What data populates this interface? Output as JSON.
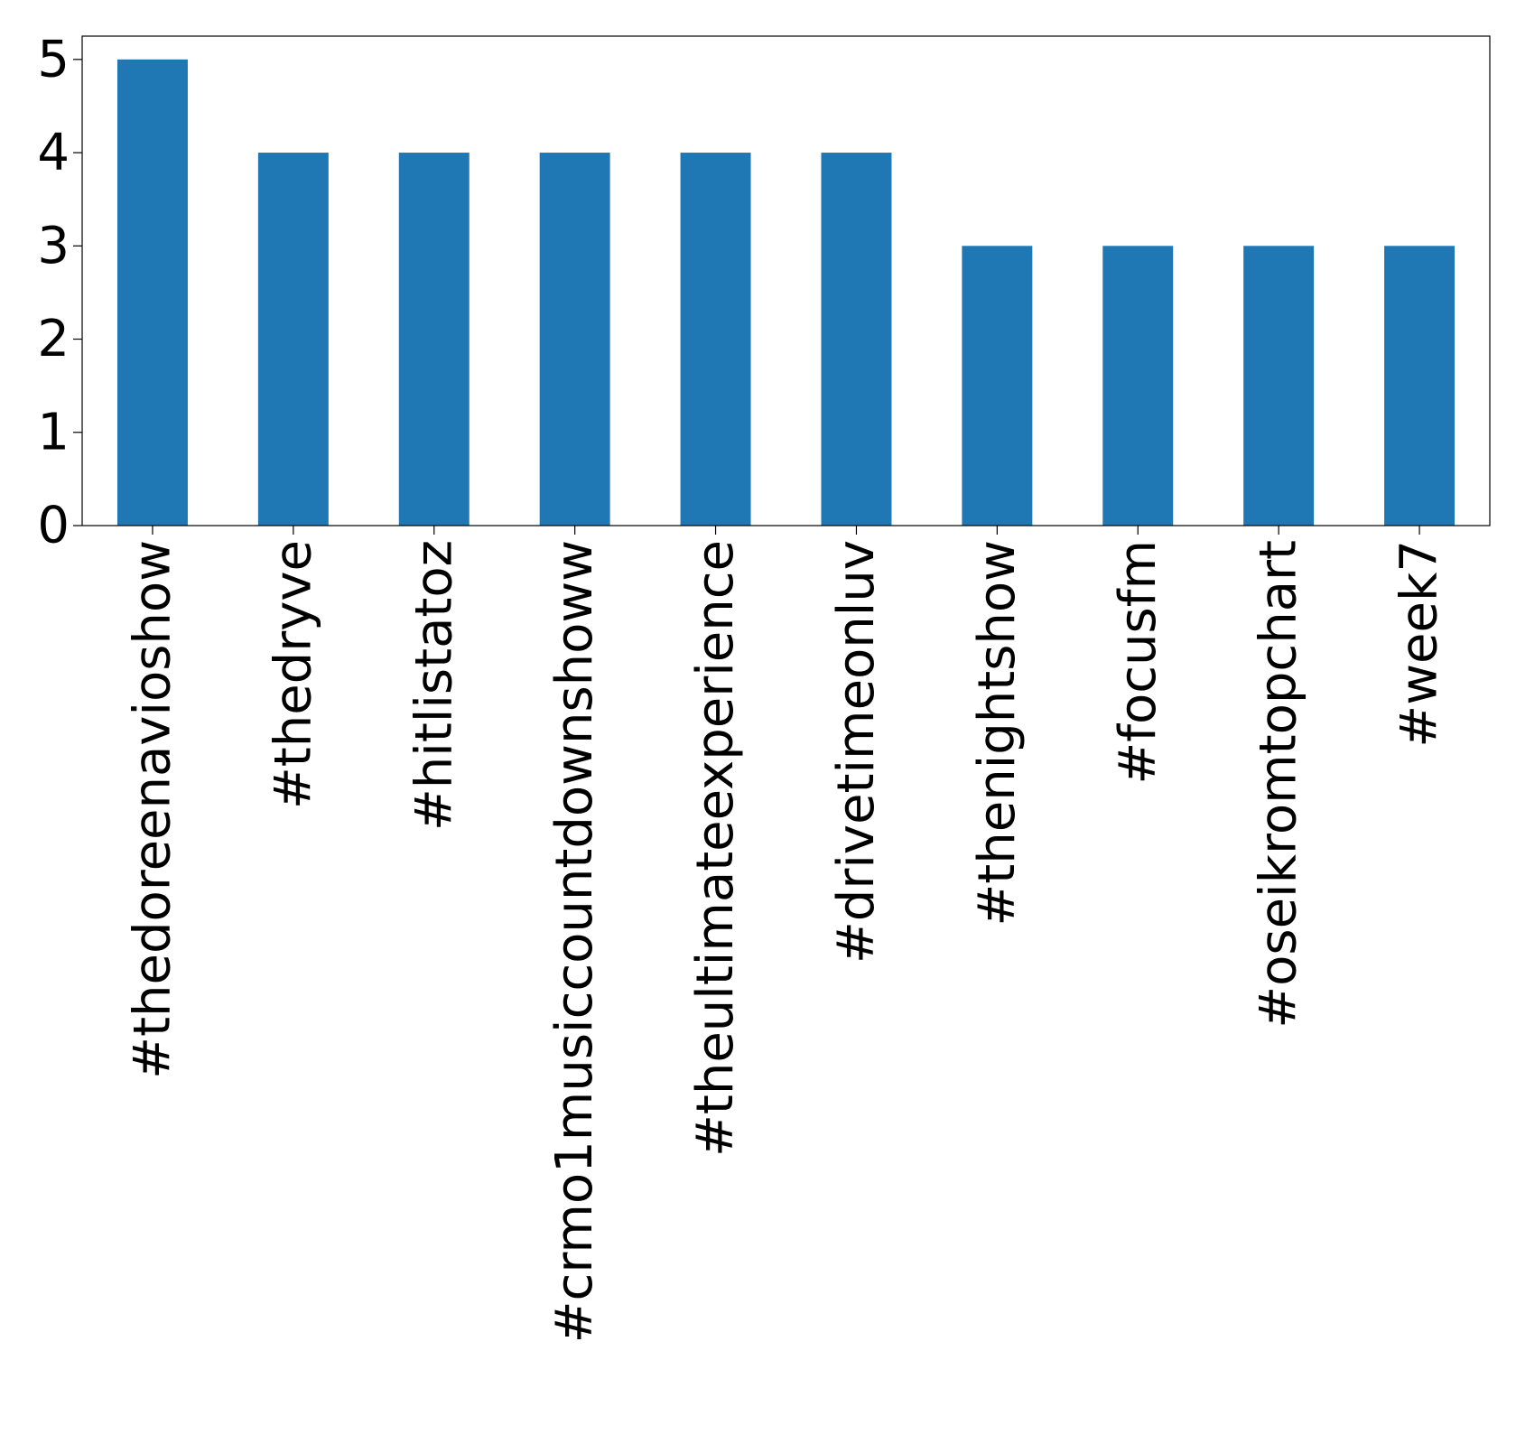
{
  "chart_data": {
    "type": "bar",
    "title": "",
    "xlabel": "",
    "ylabel": "",
    "categories": [
      "#thedoreenavioshow",
      "#thedryve",
      "#hitlistatoz",
      "#crmo1musiccountdownshoww",
      "#theultimateexperience",
      "#drivetimeonluv",
      "#thenightshow",
      "#focusfm",
      "#oseikromtopchart",
      "#week7"
    ],
    "values": [
      5,
      4,
      4,
      4,
      4,
      4,
      3,
      3,
      3,
      3
    ],
    "ylim": [
      0,
      5.25
    ],
    "yticks": [
      0,
      1,
      2,
      3,
      4,
      5
    ],
    "grid": false,
    "legend": "none",
    "bar_color": "#1f77b4"
  }
}
